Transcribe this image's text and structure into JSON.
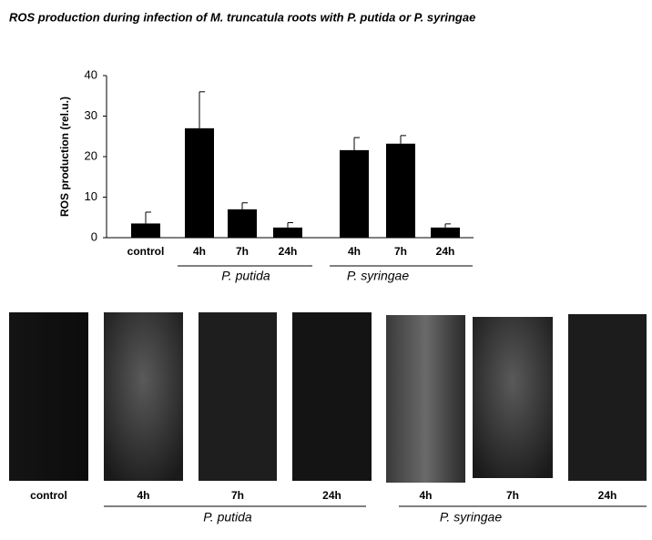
{
  "chart_data": {
    "type": "bar",
    "title": "ROS production during infection of  M. truncatula roots with P. putida or P. syringae",
    "y_label": "ROS production (rel.u.)",
    "categories": [
      "control",
      "4h",
      "7h",
      "24h",
      "4h",
      "7h",
      "24h"
    ],
    "values": [
      3.5,
      27,
      7,
      2.5,
      21.6,
      23.2,
      2.5
    ],
    "errors": [
      2.8,
      9,
      1.6,
      1.2,
      3.1,
      2,
      0.9
    ],
    "groups": [
      "P. putida",
      "P. syringae"
    ],
    "color": "#000000",
    "ylim": [
      0,
      40
    ],
    "yticks": [
      0,
      10,
      20,
      30,
      40
    ]
  },
  "image_panel": {
    "labels": [
      "control",
      "4h",
      "7h",
      "24h",
      "4h",
      "7h",
      "24h"
    ],
    "groups": [
      "P. putida",
      "P. syringae"
    ]
  }
}
